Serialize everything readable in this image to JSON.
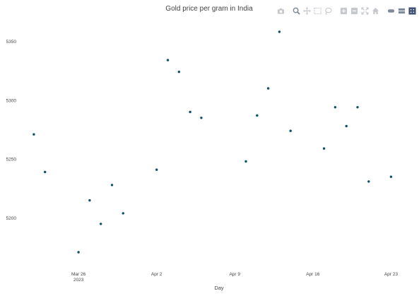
{
  "chart_data": {
    "type": "scatter",
    "title": "Gold price per gram in India",
    "xlabel": "Day",
    "ylabel": "",
    "x": [
      "2023-03-22",
      "2023-03-23",
      "2023-03-24",
      "2023-03-25",
      "2023-03-26",
      "2023-03-27",
      "2023-03-28",
      "2023-03-29",
      "2023-03-30",
      "2023-03-31",
      "2023-04-01",
      "2023-04-02",
      "2023-04-03",
      "2023-04-04",
      "2023-04-05",
      "2023-04-06",
      "2023-04-07",
      "2023-04-08",
      "2023-04-09",
      "2023-04-10",
      "2023-04-11",
      "2023-04-12",
      "2023-04-13",
      "2023-04-14",
      "2023-04-15",
      "2023-04-16",
      "2023-04-17",
      "2023-04-18",
      "2023-04-19",
      "2023-04-20",
      "2023-04-21",
      "2023-04-22",
      "2023-04-23"
    ],
    "y": [
      5271,
      5239,
      null,
      null,
      5171,
      5215,
      5195,
      5228,
      5204,
      null,
      null,
      5241,
      5334,
      5324,
      5290,
      5285,
      null,
      null,
      null,
      5248,
      5287,
      5310,
      5358,
      5274,
      null,
      null,
      5259,
      5294,
      5278,
      5294,
      5231,
      null,
      5235
    ],
    "xaxis": {
      "range": [
        "2023-03-21T12:00",
        "2023-04-25T00:00"
      ],
      "ticks": [
        {
          "date": "2023-03-26",
          "label": "Mar 26",
          "sublabel": "2023"
        },
        {
          "date": "2023-04-02",
          "label": "Apr 2",
          "sublabel": ""
        },
        {
          "date": "2023-04-09",
          "label": "Apr 9",
          "sublabel": ""
        },
        {
          "date": "2023-04-16",
          "label": "Apr 16",
          "sublabel": ""
        },
        {
          "date": "2023-04-23",
          "label": "Apr 23",
          "sublabel": ""
        }
      ]
    },
    "yaxis": {
      "range": [
        5162,
        5367
      ],
      "ticks": [
        5200,
        5250,
        5300,
        5350
      ]
    },
    "grid": false,
    "marker_color": "#0d5068"
  },
  "modebar": {
    "icons": [
      "camera-icon",
      "zoom-icon",
      "pan-icon",
      "box-select-icon",
      "lasso-select-icon",
      "zoom-in-icon",
      "zoom-out-icon",
      "autoscale-icon",
      "reset-axes-icon",
      "spike-lines-icon",
      "hover-closest-icon",
      "hover-compare-icon",
      "plotly-logo-icon"
    ],
    "icon_color": "#c5c8cc",
    "active_color": "#7e8a99"
  }
}
